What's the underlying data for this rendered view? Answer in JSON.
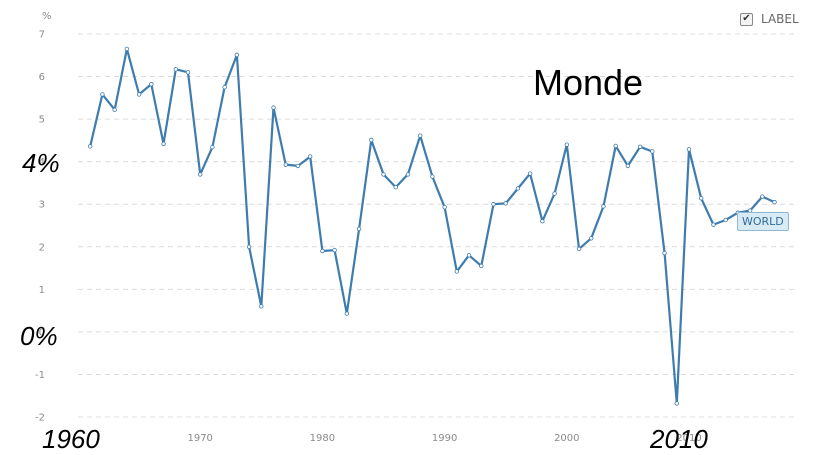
{
  "chart_data": {
    "type": "line",
    "title": "Monde",
    "ylabel": "%",
    "xlim": [
      1960,
      2018
    ],
    "ylim": [
      -2,
      7
    ],
    "yticks": [
      7,
      6,
      5,
      4,
      3,
      2,
      1,
      0,
      -1,
      -2
    ],
    "xticks": [
      "1970",
      "1980",
      "1990",
      "2000",
      "2010"
    ],
    "grid": true,
    "series": [
      {
        "name": "WORLD",
        "color": "#3e7cae",
        "x": [
          1961,
          1962,
          1963,
          1964,
          1965,
          1966,
          1967,
          1968,
          1969,
          1970,
          1971,
          1972,
          1973,
          1974,
          1975,
          1976,
          1977,
          1978,
          1979,
          1980,
          1981,
          1982,
          1983,
          1984,
          1985,
          1986,
          1987,
          1988,
          1989,
          1990,
          1991,
          1992,
          1993,
          1994,
          1995,
          1996,
          1997,
          1998,
          1999,
          2000,
          2001,
          2002,
          2003,
          2004,
          2005,
          2006,
          2007,
          2008,
          2009,
          2010,
          2011,
          2012,
          2013,
          2014,
          2015,
          2016,
          2017
        ],
        "values": [
          4.36,
          5.58,
          5.22,
          6.65,
          5.58,
          5.82,
          4.42,
          6.17,
          6.1,
          3.7,
          4.34,
          5.75,
          6.51,
          2.0,
          0.6,
          5.27,
          3.93,
          3.9,
          4.12,
          1.9,
          1.92,
          0.43,
          2.42,
          4.51,
          3.7,
          3.4,
          3.7,
          4.61,
          3.65,
          2.93,
          1.42,
          1.8,
          1.55,
          3.0,
          3.02,
          3.37,
          3.72,
          2.6,
          3.25,
          4.4,
          1.95,
          2.2,
          2.95,
          4.37,
          3.9,
          4.35,
          4.24,
          1.85,
          -1.68,
          4.29,
          3.14,
          2.52,
          2.63,
          2.8,
          2.85,
          3.18,
          3.05
        ]
      }
    ]
  },
  "ui": {
    "label_toggle": "LABEL",
    "checkbox_mark": "✔",
    "series_tag": "WORLD"
  },
  "annotations": {
    "y_high": "4%",
    "y_zero": "0%",
    "x_start": "1960",
    "x_end": "2010"
  }
}
